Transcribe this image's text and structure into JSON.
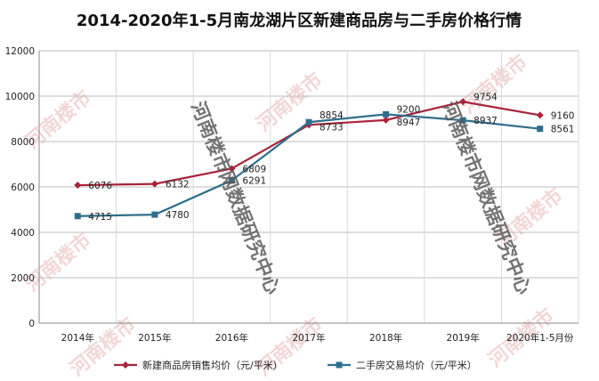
{
  "chart_data": {
    "type": "line",
    "title": "2014-2020年1-5月南龙湖片区新建商品房与二手房价格行情",
    "categories": [
      "2014年",
      "2015年",
      "2016年",
      "2017年",
      "2018年",
      "2019年",
      "2020年1-5月份"
    ],
    "ylim": [
      0,
      12000
    ],
    "yticks": [
      "0",
      "2000",
      "4000",
      "6000",
      "8000",
      "10000",
      "12000"
    ],
    "grid": true,
    "legend_position": "bottom",
    "series": [
      {
        "name": "新建商品房销售均价（元/平米）",
        "values": [
          6076,
          6132,
          6809,
          8733,
          8947,
          9754,
          9160
        ],
        "labels": [
          "6076",
          "6132",
          "6809",
          "8733",
          "8947",
          "9754",
          "9160"
        ],
        "color": "#a8233b",
        "marker": "diamond"
      },
      {
        "name": "二手房交易均价（元/平米）",
        "values": [
          4715,
          4780,
          6291,
          8854,
          9200,
          8937,
          8561
        ],
        "labels": [
          "4715",
          "4780",
          "6291",
          "8854",
          "9200",
          "8937",
          "8561"
        ],
        "color": "#2f6e8c",
        "marker": "square"
      }
    ]
  },
  "watermark": {
    "big": [
      "河南楼市网数据研究中心",
      "河南楼市网数据研究中心"
    ],
    "small": "河南楼市",
    "color": "#e8b4b4"
  }
}
